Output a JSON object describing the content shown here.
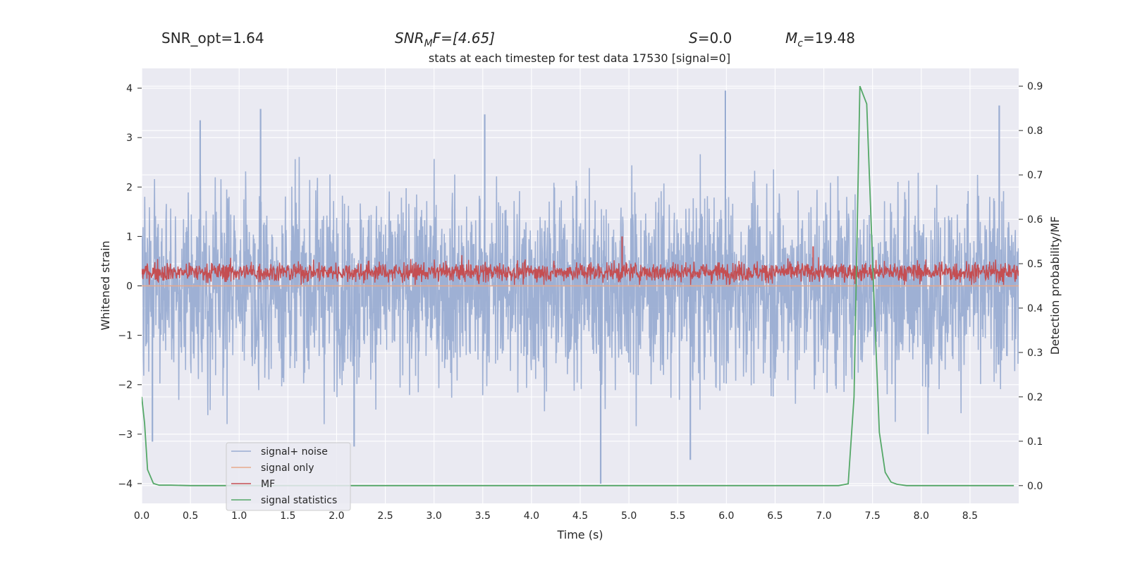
{
  "header": {
    "snr_opt": "SNR_opt=1.64",
    "snr_mf_base": "SNR",
    "snr_mf_sub": "M",
    "snr_mf_rest": "F=[4.65]",
    "s_var": "S",
    "s_rest": "=0.0",
    "mc_base": "M",
    "mc_sub": "c",
    "mc_rest": "=19.48"
  },
  "chart_data": {
    "type": "line",
    "title": "stats at each timestep for test data 17530 [signal=0]",
    "xlabel": "Time (s)",
    "ylabel_left": "Whitened strain",
    "ylabel_right": "Detection probability/MF",
    "xlim": [
      0.0,
      9.0
    ],
    "ylim_left": [
      -4.4,
      4.4
    ],
    "ylim_right": [
      -0.04,
      0.94
    ],
    "x_ticks": [
      "0.0",
      "0.5",
      "1.0",
      "1.5",
      "2.0",
      "2.5",
      "3.0",
      "3.5",
      "4.0",
      "4.5",
      "5.0",
      "5.5",
      "6.0",
      "6.5",
      "7.0",
      "7.5",
      "8.0",
      "8.5"
    ],
    "y_ticks_left": [
      "4",
      "3",
      "2",
      "1",
      "0",
      "−1",
      "−2",
      "−3",
      "−4"
    ],
    "y_ticks_right": [
      "0.9",
      "0.8",
      "0.7",
      "0.6",
      "0.5",
      "0.4",
      "0.3",
      "0.2",
      "0.1",
      "0.0"
    ],
    "colors": {
      "plot_bg": "#eaeaf2",
      "grid": "#ffffff",
      "noise": "#9aadd2",
      "signal_only": "#e8a98b",
      "mf": "#c44e52",
      "stat": "#55a868"
    },
    "legend": {
      "placement": "lower-left",
      "entries": [
        "signal+ noise",
        "signal only",
        "MF",
        "signal statistics"
      ]
    },
    "series": [
      {
        "name": "signal+ noise",
        "axis": "left",
        "description": "Gaussian-like whitened strain, dense noise roughly within -3 to 3",
        "typical_range": [
          -3.0,
          3.0
        ],
        "peaks": [
          {
            "x": 0.6,
            "y": 3.35
          },
          {
            "x": 1.22,
            "y": 3.58
          },
          {
            "x": 3.52,
            "y": 3.47
          },
          {
            "x": 5.99,
            "y": 3.95
          },
          {
            "x": 8.8,
            "y": 3.65
          },
          {
            "x": 4.71,
            "y": -4.0
          },
          {
            "x": 5.63,
            "y": -3.52
          },
          {
            "x": 2.18,
            "y": -3.25
          },
          {
            "x": 0.11,
            "y": -3.15
          }
        ]
      },
      {
        "name": "signal only",
        "axis": "left",
        "description": "Flat at zero (no injected signal)",
        "x": [
          0.0,
          9.0
        ],
        "y": [
          0.0,
          0.0
        ]
      },
      {
        "name": "MF",
        "axis": "left",
        "description": "Matched-filter output, noisy band roughly between 0.05 and 0.6",
        "typical_range": [
          0.05,
          0.55
        ],
        "peaks": [
          {
            "x": 4.93,
            "y": 1.0
          },
          {
            "x": 6.89,
            "y": 0.8
          }
        ]
      },
      {
        "name": "signal statistics",
        "axis": "right",
        "x": [
          0.0,
          0.03,
          0.06,
          0.12,
          0.18,
          0.3,
          0.5,
          7.0,
          7.15,
          7.25,
          7.31,
          7.37,
          7.44,
          7.51,
          7.57,
          7.63,
          7.69,
          7.75,
          7.85,
          8.0,
          8.95
        ],
        "y": [
          0.2,
          0.14,
          0.036,
          0.005,
          0.001,
          0.001,
          0.0,
          0.0,
          0.0,
          0.004,
          0.2,
          0.9,
          0.86,
          0.45,
          0.12,
          0.03,
          0.008,
          0.003,
          0.0,
          0.0,
          0.0
        ]
      }
    ]
  }
}
